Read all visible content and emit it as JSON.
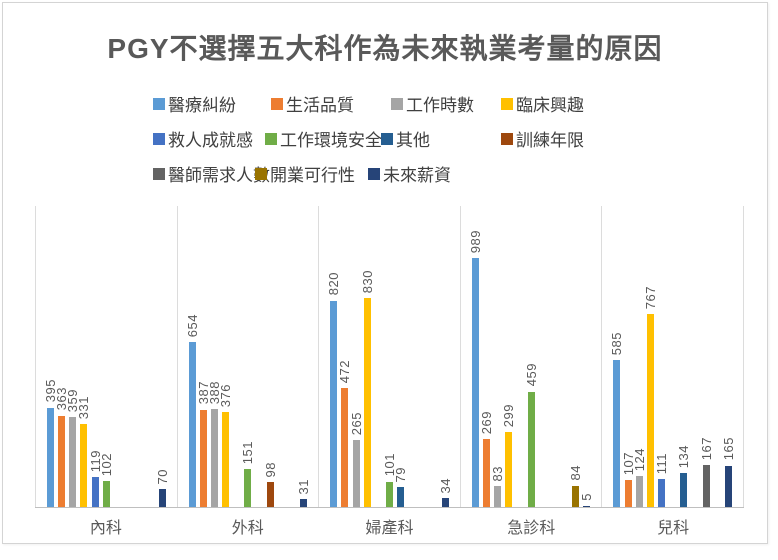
{
  "title": "PGY不選擇五大科作為未來執業考量的原因",
  "chart_data": {
    "type": "bar",
    "title": "PGY不選擇五大科作為未來執業考量的原因",
    "categories": [
      "內科",
      "外科",
      "婦產科",
      "急診科",
      "兒科"
    ],
    "series": [
      {
        "name": "醫療糾紛",
        "color": "#5B9BD5",
        "values": [
          395,
          654,
          820,
          989,
          585
        ]
      },
      {
        "name": "生活品質",
        "color": "#ED7D31",
        "values": [
          363,
          387,
          472,
          269,
          107
        ]
      },
      {
        "name": "工作時數",
        "color": "#A5A5A5",
        "values": [
          359,
          388,
          265,
          83,
          124
        ]
      },
      {
        "name": "臨床興趣",
        "color": "#FFC000",
        "values": [
          331,
          376,
          830,
          299,
          767
        ]
      },
      {
        "name": "救人成就感",
        "color": "#4472C4",
        "values": [
          119,
          null,
          null,
          null,
          111
        ]
      },
      {
        "name": "工作環境安全",
        "color": "#70AD47",
        "values": [
          102,
          151,
          101,
          459,
          null
        ]
      },
      {
        "name": "其他",
        "color": "#255E91",
        "values": [
          null,
          null,
          79,
          null,
          134
        ]
      },
      {
        "name": "訓練年限",
        "color": "#9E480E",
        "values": [
          null,
          98,
          null,
          null,
          null
        ]
      },
      {
        "name": "醫師需求人數",
        "color": "#636363",
        "values": [
          null,
          null,
          null,
          null,
          167
        ]
      },
      {
        "name": "開業可行性",
        "color": "#997300",
        "values": [
          null,
          null,
          null,
          84,
          null
        ]
      },
      {
        "name": "未來薪資",
        "color": "#264478",
        "values": [
          70,
          31,
          34,
          5,
          165
        ]
      }
    ],
    "ylim": [
      0,
      1200
    ],
    "xlabel": "",
    "ylabel": "",
    "y_axis_visible": false,
    "gridlines": "vertical category separators only",
    "legend_position": "top (3 rows)",
    "data_labels": "values rotated vertically above each bar"
  }
}
